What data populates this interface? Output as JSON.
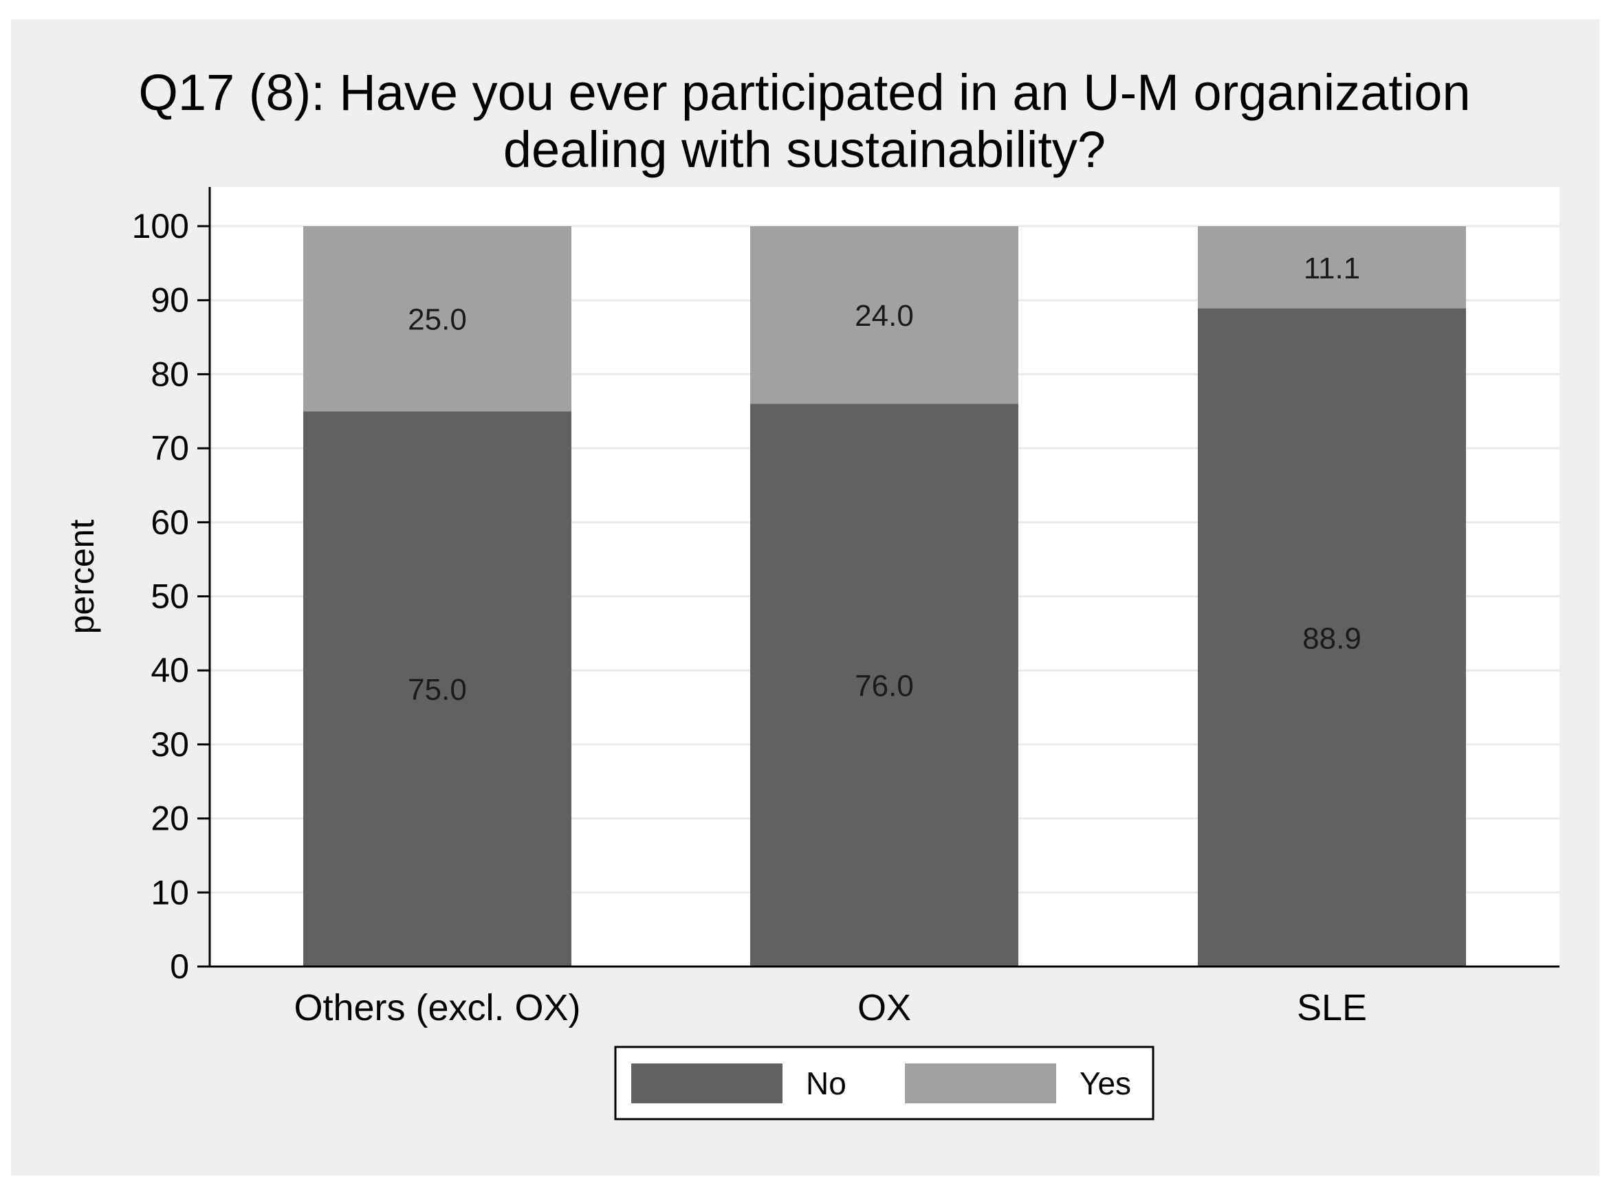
{
  "chart_data": {
    "type": "bar",
    "stacked": true,
    "title_line1": "Q17 (8): Have you ever participated in an U-M organization",
    "title_line2": "dealing with sustainability?",
    "xlabel": "",
    "ylabel": "percent",
    "ylim": [
      0,
      100
    ],
    "yticks": [
      0,
      10,
      20,
      30,
      40,
      50,
      60,
      70,
      80,
      90,
      100
    ],
    "grid": true,
    "legend_position": "bottom-center",
    "categories": [
      "Others (excl. OX)",
      "OX",
      "SLE"
    ],
    "series": [
      {
        "name": "No",
        "values": [
          75.0,
          76.0,
          88.9
        ],
        "labels": [
          "75.0",
          "76.0",
          "88.9"
        ],
        "color": "#616161"
      },
      {
        "name": "Yes",
        "values": [
          25.0,
          24.0,
          11.1
        ],
        "labels": [
          "25.0",
          "24.0",
          "11.1"
        ],
        "color": "#a1a1a1"
      }
    ],
    "colors": {
      "outer_background": "#efefef",
      "plot_background": "#ffffff",
      "gridline": "#eaeaea",
      "axis": "#000000",
      "label_text": "#1a1a1a"
    }
  }
}
